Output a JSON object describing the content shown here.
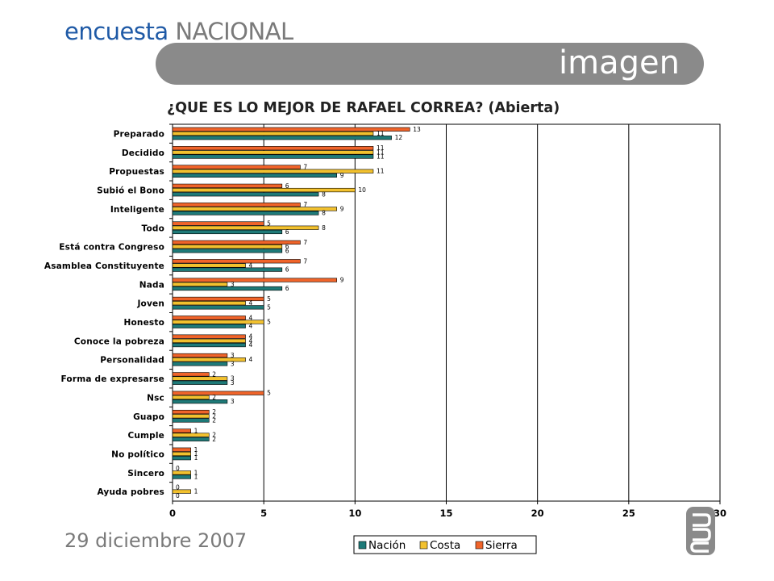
{
  "header": {
    "brand_part1": "encuesta",
    "brand_part2": "NACIONAL",
    "banner_text": "imagen"
  },
  "footer": {
    "date": "29 diciembre 2007"
  },
  "colors": {
    "nacion": "#1e7a78",
    "costa": "#f2c12e",
    "sierra": "#f0642a",
    "banner": "#8a8a8a",
    "brand": "#1f5aa6"
  },
  "chart_data": {
    "type": "bar",
    "orientation": "horizontal",
    "title": "¿QUE ES LO MEJOR DE RAFAEL CORREA? (Abierta)",
    "categories": [
      "Preparado",
      "Decidido",
      "Propuestas",
      "Subió el Bono",
      "Inteligente",
      "Todo",
      "Está contra Congreso",
      "Asamblea Constituyente",
      "Nada",
      "Joven",
      "Honesto",
      "Conoce la pobreza",
      "Personalidad",
      "Forma de expresarse",
      "Nsc",
      "Guapo",
      "Cumple",
      "No político",
      "Sincero",
      "Ayuda pobres"
    ],
    "series": [
      {
        "name": "Sierra",
        "color": "#f0642a",
        "values": [
          13,
          11,
          7,
          6,
          7,
          5,
          7,
          7,
          9,
          5,
          4,
          4,
          3,
          2,
          5,
          2,
          1,
          1,
          0,
          0
        ]
      },
      {
        "name": "Costa",
        "color": "#f2c12e",
        "values": [
          11,
          11,
          11,
          10,
          9,
          8,
          6,
          4,
          3,
          4,
          5,
          4,
          4,
          3,
          2,
          2,
          2,
          1,
          1,
          1
        ]
      },
      {
        "name": "Nación",
        "color": "#1e7a78",
        "values": [
          12,
          11,
          9,
          8,
          8,
          6,
          6,
          6,
          6,
          5,
          4,
          4,
          3,
          3,
          3,
          2,
          2,
          1,
          1,
          0
        ]
      }
    ],
    "legend_order": [
      "Nación",
      "Costa",
      "Sierra"
    ],
    "xlim": [
      0,
      30
    ],
    "xticks": [
      0,
      5,
      10,
      15,
      20,
      25,
      30
    ],
    "grid": "vertical",
    "legend_position": "bottom"
  }
}
